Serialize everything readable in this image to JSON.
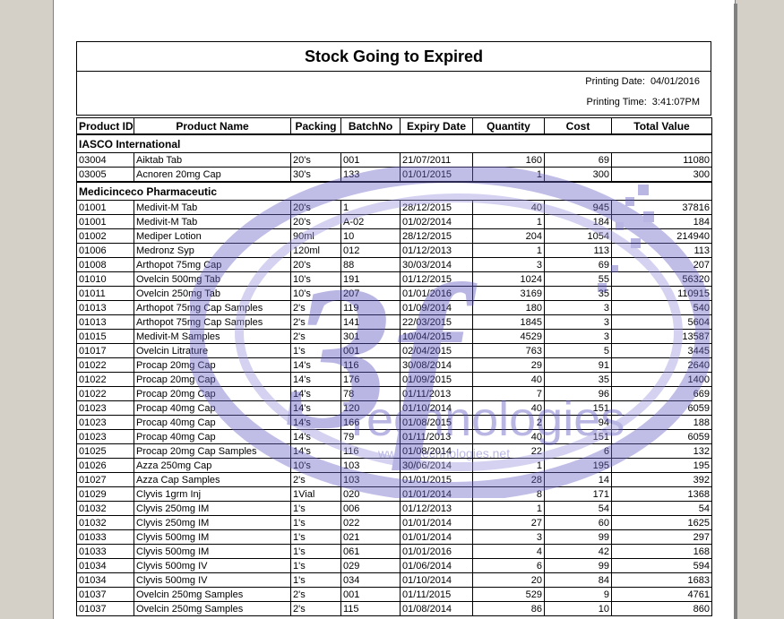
{
  "report": {
    "title": "Stock Going to Expired",
    "printing_date_label": "Printing Date:",
    "printing_date": "04/01/2016",
    "printing_time_label": "Printing Time:",
    "printing_time": "3:41:07PM"
  },
  "columns": [
    "Product ID",
    "Product Name",
    "Packing",
    "BatchNo",
    "Expiry Date",
    "Quantity",
    "Cost",
    "Total Value"
  ],
  "groups": [
    {
      "name": "IASCO International",
      "rows": [
        [
          "03004",
          "Aiktab Tab",
          "20's",
          "001",
          "21/07/2011",
          "160",
          "69",
          "11080"
        ],
        [
          "03005",
          "Acnoren 20mg Cap",
          "30's",
          "133",
          "01/01/2015",
          "1",
          "300",
          "300"
        ]
      ]
    },
    {
      "name": "Medicinceco Pharmaceutic",
      "rows": [
        [
          "01001",
          "Medivit-M Tab",
          "20's",
          "1",
          "28/12/2015",
          "40",
          "945",
          "37816"
        ],
        [
          "01001",
          "Medivit-M Tab",
          "20's",
          "A-02",
          "01/02/2014",
          "1",
          "184",
          "184"
        ],
        [
          "01002",
          "Mediper Lotion",
          "90ml",
          "10",
          "28/12/2015",
          "204",
          "1054",
          "214940"
        ],
        [
          "01006",
          "Medronz Syp",
          "120ml",
          "012",
          "01/12/2013",
          "1",
          "113",
          "113"
        ],
        [
          "01008",
          "Arthopot 75mg Cap",
          "20's",
          "88",
          "30/03/2014",
          "3",
          "69",
          "207"
        ],
        [
          "01010",
          "Ovelcin 500mg Tab",
          "10's",
          "191",
          "01/12/2015",
          "1024",
          "55",
          "56320"
        ],
        [
          "01011",
          "Ovelcin 250mg Tab",
          "10's",
          "207",
          "01/01/2016",
          "3169",
          "35",
          "110915"
        ],
        [
          "01013",
          "Arthopot 75mg Cap Samples",
          "2's",
          "119",
          "01/09/2014",
          "180",
          "3",
          "540"
        ],
        [
          "01013",
          "Arthopot 75mg Cap Samples",
          "2's",
          "141",
          "22/03/2015",
          "1845",
          "3",
          "5604"
        ],
        [
          "01015",
          "Medivit-M Samples",
          "2's",
          "301",
          "10/04/2015",
          "4529",
          "3",
          "13587"
        ],
        [
          "01017",
          "Ovelcin Litrature",
          "1's",
          "001",
          "02/04/2015",
          "763",
          "5",
          "3445"
        ],
        [
          "01022",
          "Procap 20mg Cap",
          "14's",
          "116",
          "30/08/2014",
          "29",
          "91",
          "2640"
        ],
        [
          "01022",
          "Procap 20mg Cap",
          "14's",
          "176",
          "01/09/2015",
          "40",
          "35",
          "1400"
        ],
        [
          "01022",
          "Procap 20mg Cap",
          "14's",
          "78",
          "01/11/2013",
          "7",
          "96",
          "669"
        ],
        [
          "01023",
          "Procap 40mg Cap",
          "14's",
          "120",
          "01/10/2014",
          "40",
          "151",
          "6059"
        ],
        [
          "01023",
          "Procap 40mg Cap",
          "14's",
          "166",
          "01/08/2015",
          "2",
          "94",
          "188"
        ],
        [
          "01023",
          "Procap 40mg Cap",
          "14's",
          "79",
          "01/11/2013",
          "40",
          "151",
          "6059"
        ],
        [
          "01025",
          "Procap 20mg Cap Samples",
          "14's",
          "116",
          "01/08/2014",
          "22",
          "6",
          "132"
        ],
        [
          "01026",
          "Azza 250mg Cap",
          "10's",
          "103",
          "30/06/2014",
          "1",
          "195",
          "195"
        ],
        [
          "01027",
          "Azza Cap Samples",
          "2's",
          "103",
          "01/01/2015",
          "28",
          "14",
          "392"
        ],
        [
          "01029",
          "Clyvis 1grm Inj",
          "1Vial",
          "020",
          "01/01/2014",
          "8",
          "171",
          "1368"
        ],
        [
          "01032",
          "Clyvis 250mg IM",
          "1's",
          "006",
          "01/12/2013",
          "1",
          "54",
          "54"
        ],
        [
          "01032",
          "Clyvis 250mg IM",
          "1's",
          "022",
          "01/01/2014",
          "27",
          "60",
          "1625"
        ],
        [
          "01033",
          "Clyvis 500mg IM",
          "1's",
          "021",
          "01/01/2014",
          "3",
          "99",
          "297"
        ],
        [
          "01033",
          "Clyvis 500mg IM",
          "1's",
          "061",
          "01/01/2016",
          "4",
          "42",
          "168"
        ],
        [
          "01034",
          "Clyvis 500mg IV",
          "1's",
          "029",
          "01/06/2014",
          "6",
          "99",
          "594"
        ],
        [
          "01034",
          "Clyvis 500mg IV",
          "1's",
          "034",
          "01/10/2014",
          "20",
          "84",
          "1683"
        ],
        [
          "01037",
          "Ovelcin 250mg Samples",
          "2's",
          "001",
          "01/11/2015",
          "529",
          "9",
          "4761"
        ],
        [
          "01037",
          "Ovelcin 250mg Samples",
          "2's",
          "115",
          "01/08/2014",
          "86",
          "10",
          "860"
        ]
      ]
    }
  ],
  "watermark": {
    "brand": "Technologies",
    "url": "www.3ftechnologies.net",
    "color": "#6a63c7"
  }
}
